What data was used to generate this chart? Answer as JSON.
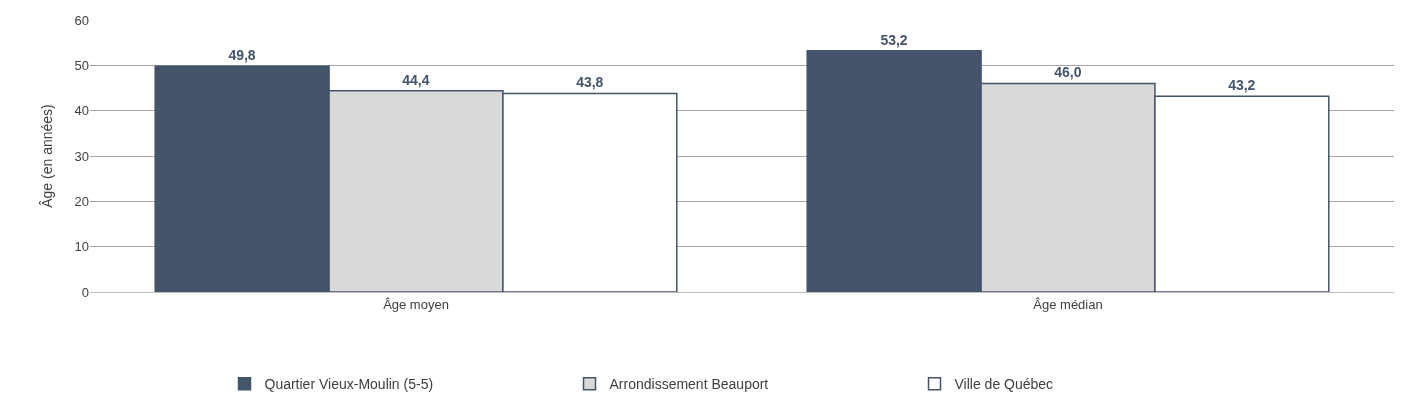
{
  "chart_data": {
    "type": "bar",
    "ylabel": "Âge (en années)",
    "categories": [
      "Âge moyen",
      "Âge médian"
    ],
    "ylim": [
      0,
      60
    ],
    "yticks": [
      0,
      10,
      20,
      30,
      40,
      50,
      60
    ],
    "grid": "y",
    "legend": "bottom",
    "series": [
      {
        "name": "Quartier Vieux-Moulin (5-5)",
        "color": "#44546a",
        "values": [
          49.8,
          53.2
        ],
        "value_labels": [
          "49,8",
          "53,2"
        ]
      },
      {
        "name": "Arrondissement Beauport",
        "color": "#d9d9d9",
        "values": [
          44.4,
          46.0
        ],
        "value_labels": [
          "44,4",
          "46,0"
        ]
      },
      {
        "name": "Ville de Québec",
        "color": "#ffffff",
        "values": [
          43.8,
          43.2
        ],
        "value_labels": [
          "43,8",
          "43,2"
        ]
      }
    ]
  }
}
